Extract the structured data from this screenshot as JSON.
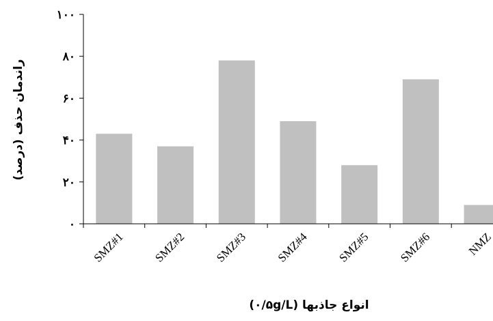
{
  "chart_data": {
    "type": "bar",
    "categories": [
      "SMZ#1",
      "SMZ#2",
      "SMZ#3",
      "SMZ#4",
      "SMZ#5",
      "SMZ#6",
      "NMZ"
    ],
    "values": [
      43,
      37,
      78,
      49,
      28,
      69,
      9
    ],
    "xlabel": "انواع جاذبها (۰/۵g/L)",
    "ylabel": "راندمان حذف (درصد)",
    "ylim": [
      0,
      100
    ],
    "yticks": [
      0,
      20,
      40,
      60,
      80,
      100
    ],
    "ytick_labels": [
      "۰",
      "۲۰",
      "۴۰",
      "۶۰",
      "۸۰",
      "۱۰۰"
    ],
    "bar_color": "#c0c0c0",
    "grid": false,
    "legend": "none"
  }
}
